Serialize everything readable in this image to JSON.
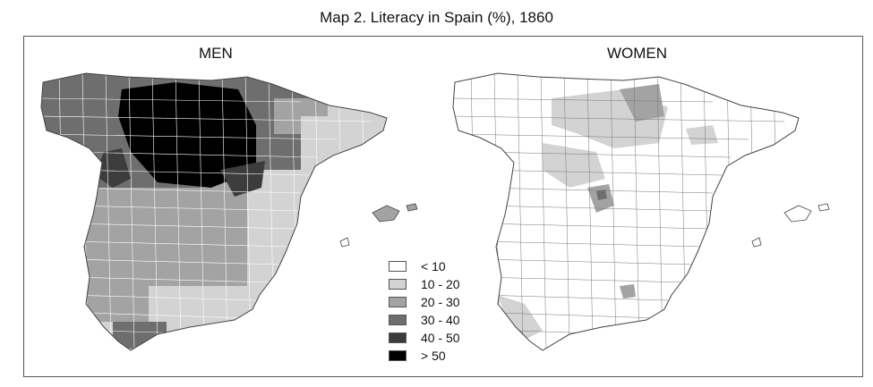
{
  "title": "Map 2. Literacy in Spain (%), 1860",
  "panels": {
    "men_label": "MEN",
    "women_label": "WOMEN"
  },
  "legend": [
    {
      "label": "< 10",
      "color": "#ffffff"
    },
    {
      "label": "10 - 20",
      "color": "#d3d3d3"
    },
    {
      "label": "20 - 30",
      "color": "#a3a3a3"
    },
    {
      "label": "30 - 40",
      "color": "#6e6e6e"
    },
    {
      "label": "40 - 50",
      "color": "#3c3c3c"
    },
    {
      "label": "> 50",
      "color": "#000000"
    }
  ]
}
